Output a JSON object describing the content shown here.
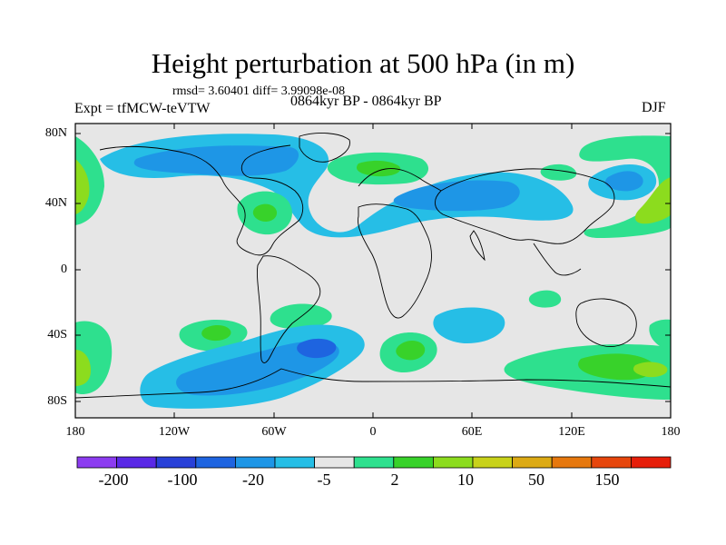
{
  "title": "Height perturbation at 500 hPa (in m)",
  "stats": "rmsd= 3.60401 diff= 3.99098e-08",
  "experiment": "Expt = tfMCW-teVTW",
  "period": "0864kyr BP - 0864kyr BP",
  "season": "DJF",
  "lat_labels": [
    "80N",
    "40N",
    "0",
    "40S",
    "80S"
  ],
  "lon_labels": [
    "180",
    "120W",
    "60W",
    "0",
    "60E",
    "120E",
    "180"
  ],
  "colorbar": {
    "labels": [
      "-200",
      "-100",
      "-20",
      "-5",
      "2",
      "10",
      "50",
      "150"
    ],
    "colors": [
      "#8c3cf0",
      "#5a28e6",
      "#2840d8",
      "#1e64e0",
      "#1e96e6",
      "#26bee6",
      "#e6e6e6",
      "#2ee08e",
      "#38d22a",
      "#8cdc1e",
      "#c8d21a",
      "#dcaa14",
      "#e6780e",
      "#e6460c",
      "#e61e0a"
    ]
  },
  "colors": {
    "background": "#e6e6e6",
    "land_outline": "#000000"
  }
}
